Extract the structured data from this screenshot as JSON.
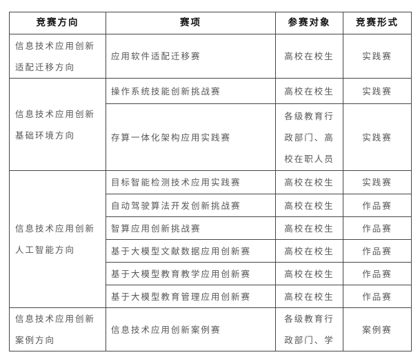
{
  "headers": [
    "竞赛方向",
    "赛项",
    "参赛对象",
    "竞赛形式"
  ],
  "groups": [
    {
      "direction": [
        "信息技术应用创新",
        "适配迁移方向"
      ],
      "items": [
        {
          "name": "应用软件适配迁移赛",
          "target": [
            "高校在校生"
          ],
          "form": "实践赛"
        }
      ]
    },
    {
      "direction": [
        "信息技术应用创新",
        "基础环境方向"
      ],
      "items": [
        {
          "name": "操作系统技能创新挑战赛",
          "target": [
            "高校在校生"
          ],
          "form": "实践赛"
        },
        {
          "name": "存算一体化架构应用实践赛",
          "target": [
            "各级教育行",
            "政部门、高",
            "校在职人员"
          ],
          "form": "实践赛"
        }
      ]
    },
    {
      "direction": [
        "信息技术应用创新",
        "人工智能方向"
      ],
      "items": [
        {
          "name": "目标智能检测技术应用实践赛",
          "target": [
            "高校在校生"
          ],
          "form": "实践赛"
        },
        {
          "name": "自动驾驶算法开发创新挑战赛",
          "target": [
            "高校在校生"
          ],
          "form": "作品赛"
        },
        {
          "name": "智算应用创新挑战赛",
          "target": [
            "高校在校生"
          ],
          "form": "作品赛"
        },
        {
          "name": "基于大模型文献数据应用创新赛",
          "target": [
            "高校在校生"
          ],
          "form": "作品赛"
        },
        {
          "name": "基于大模型教育教学应用创新赛",
          "target": [
            "高校在校生"
          ],
          "form": "作品赛"
        },
        {
          "name": "基于大模型教育管理应用创新赛",
          "target": [
            "高校在校生"
          ],
          "form": "作品赛"
        }
      ]
    },
    {
      "direction": [
        "信息技术应用创新",
        "案例方向"
      ],
      "items": [
        {
          "name": "信息技术应用创新案例赛",
          "target": [
            "各级教育行",
            "政部门、学"
          ],
          "form": "案例赛"
        }
      ]
    }
  ]
}
